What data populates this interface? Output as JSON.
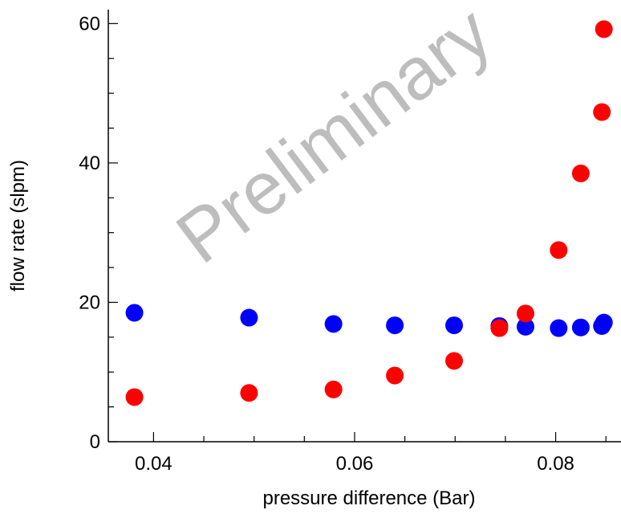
{
  "chart_data": {
    "type": "scatter",
    "title": "",
    "xlabel": "pressure difference (Bar)",
    "ylabel": "flow rate (slpm)",
    "xlim": [
      0.0355,
      0.0865
    ],
    "ylim": [
      0,
      62
    ],
    "x_ticks": [
      {
        "value": 0.04,
        "label": "0.04"
      },
      {
        "value": 0.06,
        "label": "0.06"
      },
      {
        "value": 0.08,
        "label": "0.08"
      }
    ],
    "y_ticks": [
      {
        "value": 0,
        "label": "0"
      },
      {
        "value": 20,
        "label": "20"
      },
      {
        "value": 40,
        "label": "40"
      },
      {
        "value": 60,
        "label": "60"
      }
    ],
    "grid": false,
    "watermark": "Preliminary",
    "series": [
      {
        "color": "#0000ff",
        "points": [
          {
            "x": 0.0381,
            "y": 18.5
          },
          {
            "x": 0.0495,
            "y": 17.8
          },
          {
            "x": 0.0579,
            "y": 16.9
          },
          {
            "x": 0.064,
            "y": 16.7
          },
          {
            "x": 0.0699,
            "y": 16.7
          },
          {
            "x": 0.0744,
            "y": 16.6
          },
          {
            "x": 0.077,
            "y": 16.5
          },
          {
            "x": 0.0803,
            "y": 16.3
          },
          {
            "x": 0.0825,
            "y": 16.4
          },
          {
            "x": 0.0846,
            "y": 16.6
          },
          {
            "x": 0.0848,
            "y": 17.1
          }
        ]
      },
      {
        "color": "#ff0000",
        "points": [
          {
            "x": 0.0381,
            "y": 6.4
          },
          {
            "x": 0.0495,
            "y": 7.0
          },
          {
            "x": 0.0579,
            "y": 7.5
          },
          {
            "x": 0.064,
            "y": 9.5
          },
          {
            "x": 0.0699,
            "y": 11.6
          },
          {
            "x": 0.0744,
            "y": 16.3
          },
          {
            "x": 0.077,
            "y": 18.4
          },
          {
            "x": 0.0803,
            "y": 27.5
          },
          {
            "x": 0.0825,
            "y": 38.5
          },
          {
            "x": 0.0846,
            "y": 47.3
          },
          {
            "x": 0.0848,
            "y": 59.2
          }
        ]
      }
    ]
  }
}
